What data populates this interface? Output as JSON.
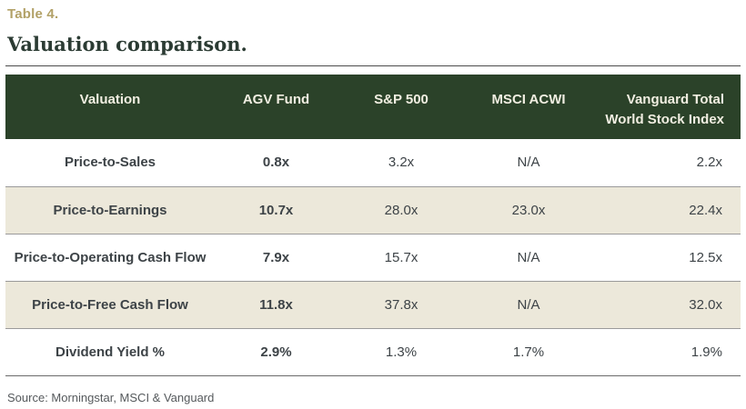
{
  "page": {
    "table_label": "Table 4.",
    "title": "Valuation comparison.",
    "source": "Source: Morningstar, MSCI & Vanguard"
  },
  "colors": {
    "accent_gold": "#B2A167",
    "header_bg": "#2B4229",
    "header_text": "#F1EEE1",
    "stripe_bg": "#ECE8DA",
    "body_text": "#3D4347",
    "title_color": "#2B3B33"
  },
  "table": {
    "headers": [
      "Valuation",
      "AGV Fund",
      "S&P 500",
      "MSCI ACWI",
      "Vanguard Total World Stock Index"
    ],
    "rows": [
      [
        "Price-to-Sales",
        "0.8x",
        "3.2x",
        "N/A",
        "2.2x"
      ],
      [
        "Price-to-Earnings",
        "10.7x",
        "28.0x",
        "23.0x",
        "22.4x"
      ],
      [
        "Price-to-Operating Cash Flow",
        "7.9x",
        "15.7x",
        "N/A",
        "12.5x"
      ],
      [
        "Price-to-Free Cash Flow",
        "11.8x",
        "37.8x",
        "N/A",
        "32.0x"
      ],
      [
        "Dividend Yield %",
        "2.9%",
        "1.3%",
        "1.7%",
        "1.9%"
      ]
    ]
  }
}
